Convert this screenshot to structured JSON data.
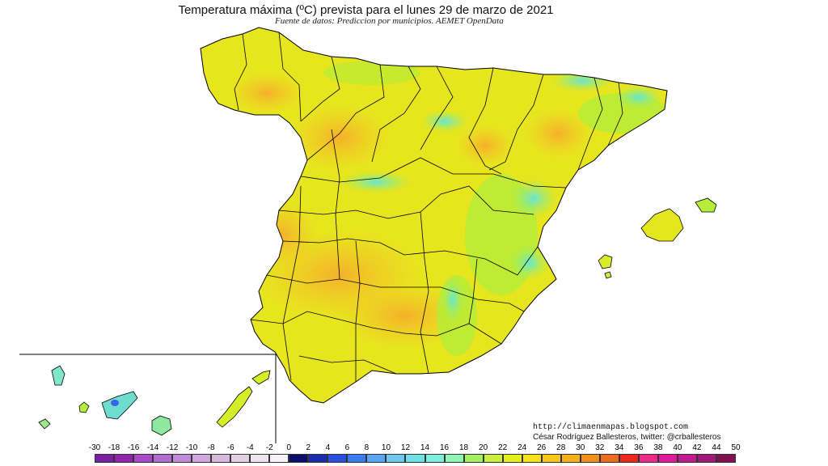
{
  "title": "Temperatura máxima (ºC) prevista para el lunes 29 de marzo de 2021",
  "subtitle": "Fuente de datos: Prediccion por municipios. AEMET OpenData",
  "credits": {
    "line1": "http://climaenmapas.blogspot.com",
    "line2": "César Rodríguez Ballesteros, twitter: @crballesteros"
  },
  "legend": {
    "unit": "ºC",
    "ticks": [
      "-30",
      "-18",
      "-16",
      "-14",
      "-12",
      "-10",
      "-8",
      "-6",
      "-4",
      "-2",
      "0",
      "2",
      "4",
      "6",
      "8",
      "10",
      "12",
      "14",
      "16",
      "18",
      "20",
      "22",
      "24",
      "26",
      "28",
      "30",
      "32",
      "34",
      "36",
      "38",
      "40",
      "42",
      "44",
      "50"
    ],
    "colors": [
      "#7b1fa2",
      "#8e24aa",
      "#a64ac9",
      "#b26bd1",
      "#c08ad8",
      "#cfa6de",
      "#d8b8de",
      "#e2cfe4",
      "#ece3ee",
      "#f6f2f7",
      "#0d0d6b",
      "#1a2bb0",
      "#2a4ee0",
      "#3a7cf0",
      "#5aa6f2",
      "#6ec8f0",
      "#6fe0e6",
      "#7feedc",
      "#8ef5b4",
      "#a4f060",
      "#c8f03c",
      "#e6ee1c",
      "#f4e21a",
      "#f7c81a",
      "#f5b01a",
      "#f2901c",
      "#ef6a1c",
      "#ea2a1a",
      "#ec2a8c",
      "#e01a9a",
      "#c21890",
      "#a01878",
      "#80104e"
    ]
  },
  "map": {
    "region": "España peninsular, Baleares y Canarias",
    "colors": {
      "hot_orange": "#f6b52a",
      "warm_yellow": "#e8e61c",
      "mild_green": "#a8ec3a",
      "cool_cyan": "#7ee6d0",
      "sea": "#ffffff",
      "border": "#000000"
    }
  }
}
